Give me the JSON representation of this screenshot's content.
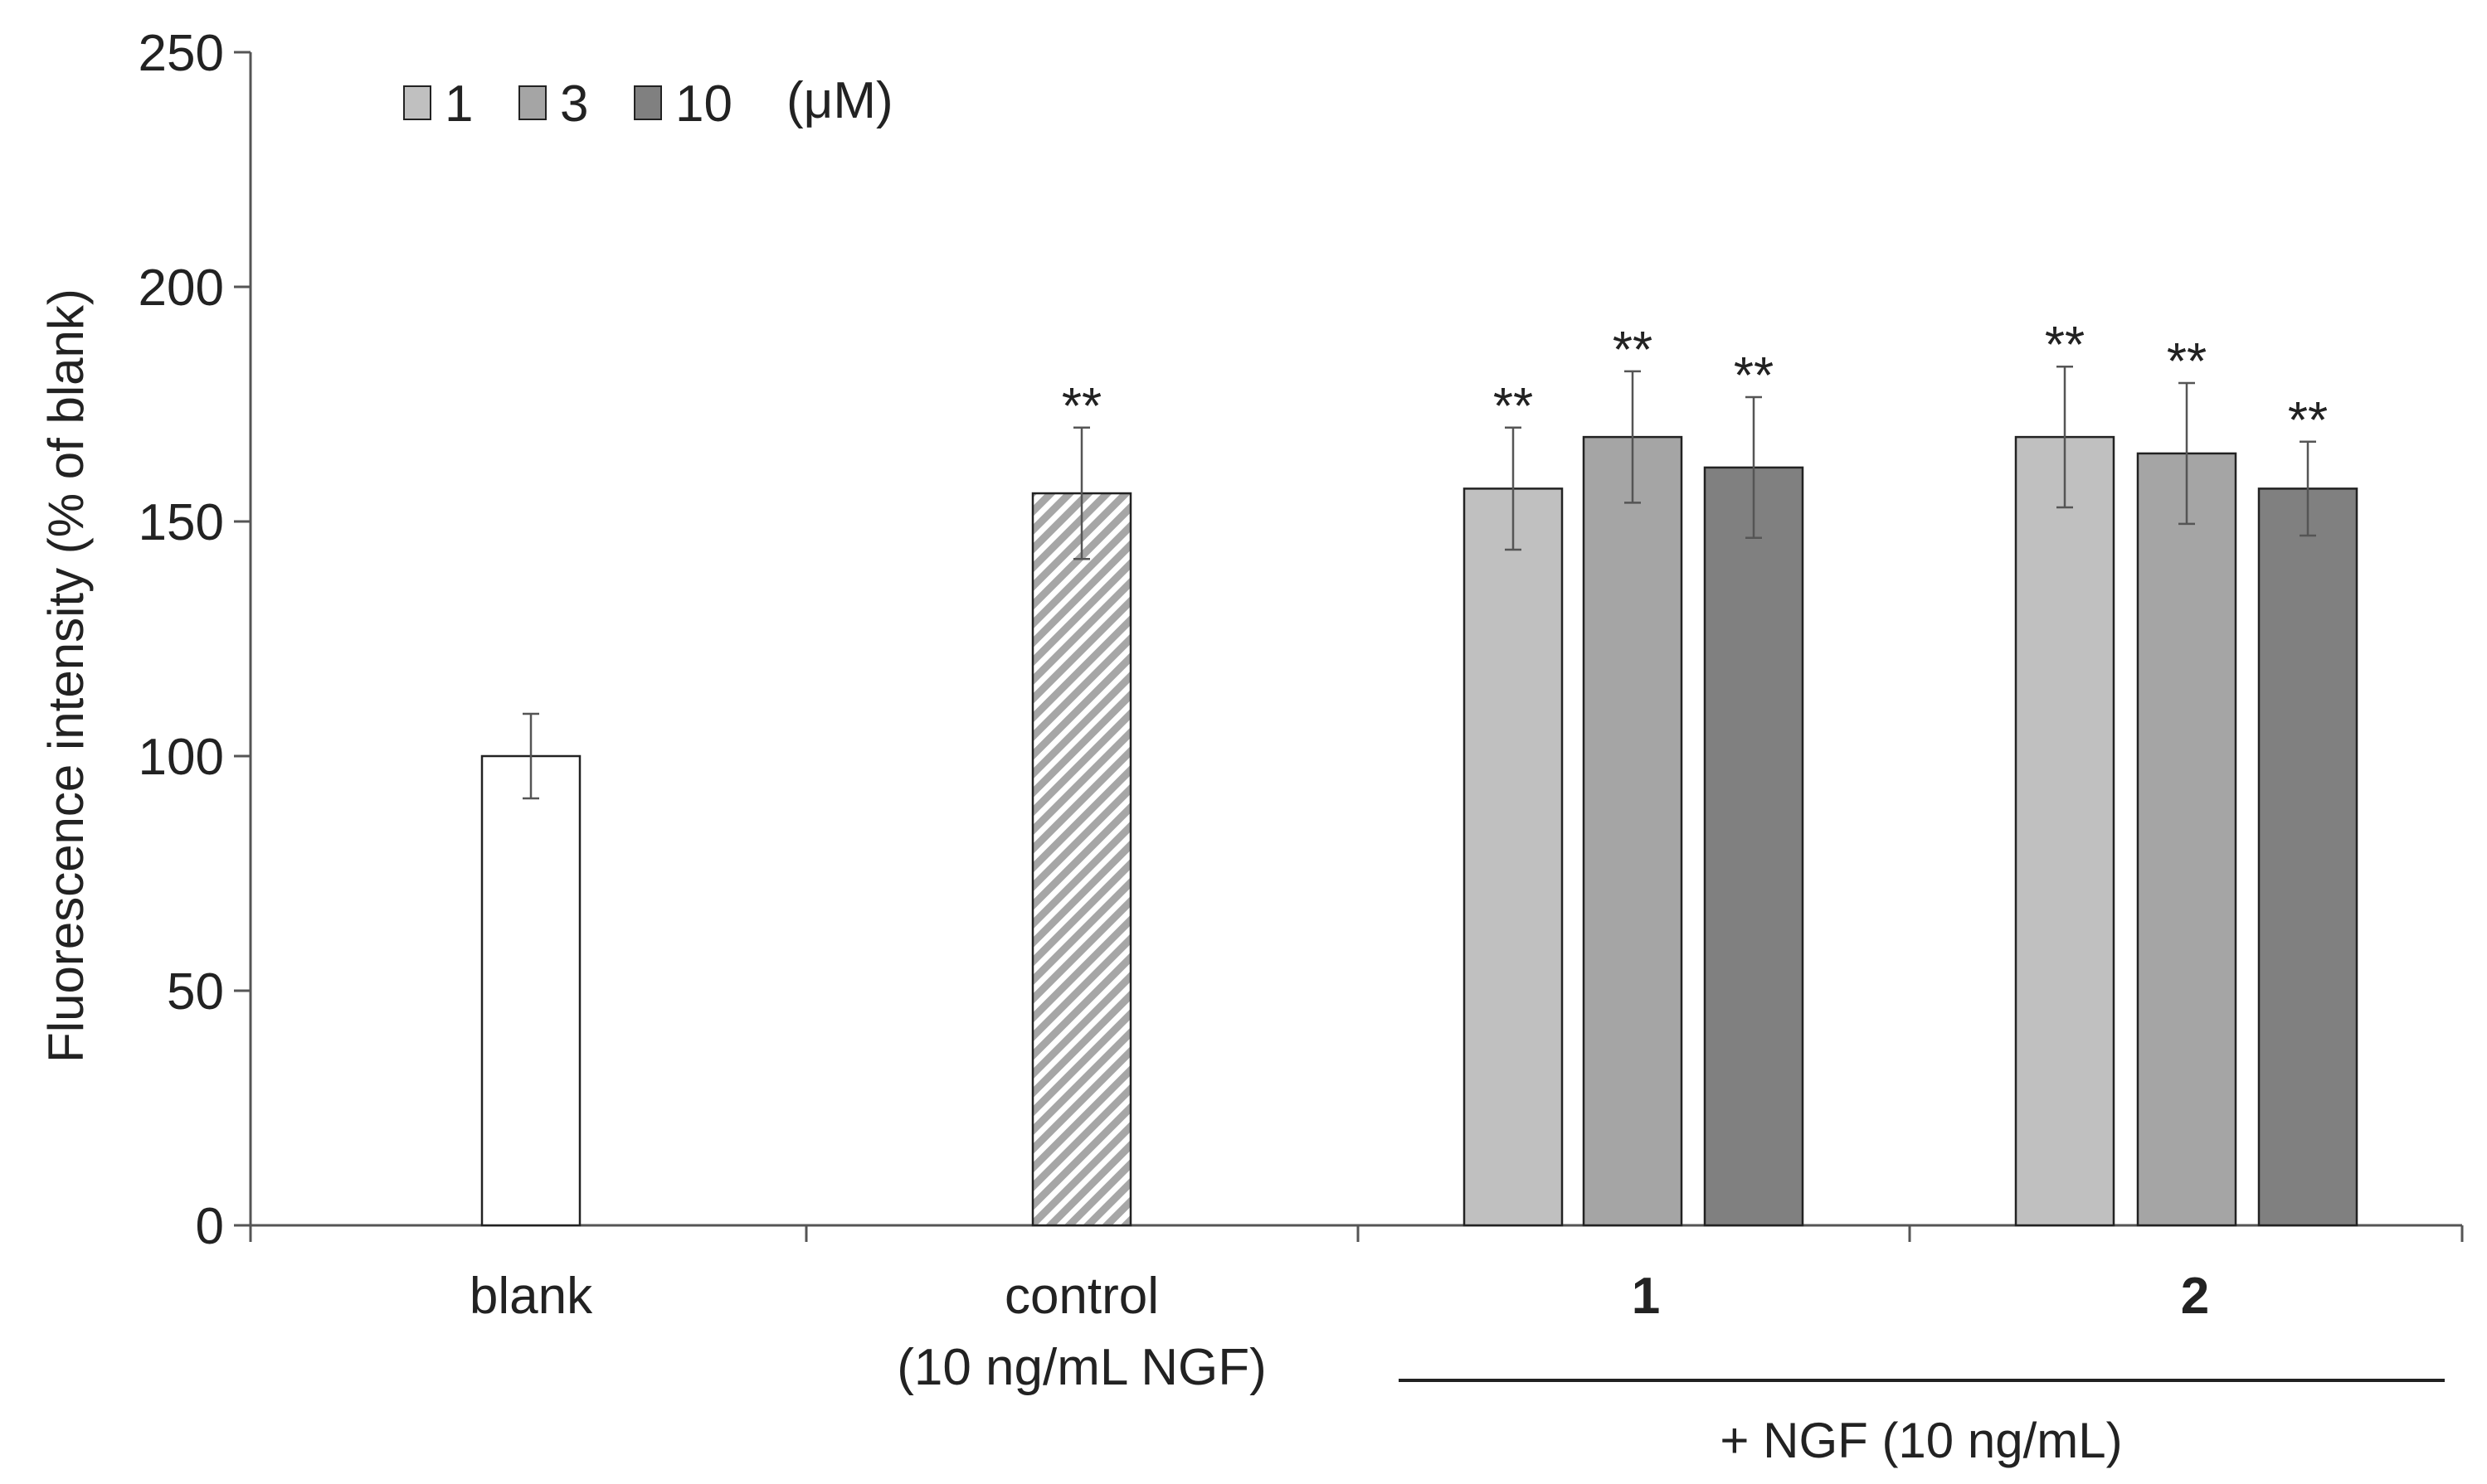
{
  "chart_data": {
    "type": "bar",
    "ylabel": "Fluorescence intensity (% of blank)",
    "ylim": [
      0,
      250
    ],
    "yticks": [
      0,
      50,
      100,
      150,
      200,
      250
    ],
    "ytick_labels": [
      "0",
      "50",
      "100",
      "150",
      "200",
      "250"
    ],
    "grid": false,
    "legend": {
      "placement": "top-left",
      "entries": [
        "1",
        "3",
        "10"
      ],
      "unit": "(μM)"
    },
    "groups": [
      {
        "label": "blank",
        "label2": "",
        "bold": false
      },
      {
        "label": "control",
        "label2": "(10 ng/mL NGF)",
        "bold": false
      },
      {
        "label": "1",
        "label2": "",
        "bold": true
      },
      {
        "label": "2",
        "label2": "",
        "bold": true
      }
    ],
    "group_bracket_label": "+ NGF (10 ng/mL)",
    "bars": [
      {
        "group": "blank",
        "series": "blank",
        "value": 100,
        "error": 9,
        "annotation": ""
      },
      {
        "group": "control",
        "series": "control",
        "value": 156,
        "error": 14,
        "annotation": "**"
      },
      {
        "group": "1",
        "series": "1",
        "value": 157,
        "error": 13,
        "annotation": "**"
      },
      {
        "group": "1",
        "series": "3",
        "value": 168,
        "error": 14,
        "annotation": "**"
      },
      {
        "group": "1",
        "series": "10",
        "value": 161.5,
        "error": 15,
        "annotation": "**"
      },
      {
        "group": "2",
        "series": "1",
        "value": 168,
        "error": 15,
        "annotation": "**"
      },
      {
        "group": "2",
        "series": "3",
        "value": 164.5,
        "error": 15,
        "annotation": "**"
      },
      {
        "group": "2",
        "series": "10",
        "value": 157,
        "error": 10,
        "annotation": "**"
      }
    ],
    "colors": {
      "blank": "#ffffff",
      "control_stripe": "#a6a6a6",
      "1": "#c0c0c0",
      "3": "#a5a5a5",
      "10": "#808080",
      "axis": "#555555",
      "bar_edge": "#222222"
    }
  }
}
